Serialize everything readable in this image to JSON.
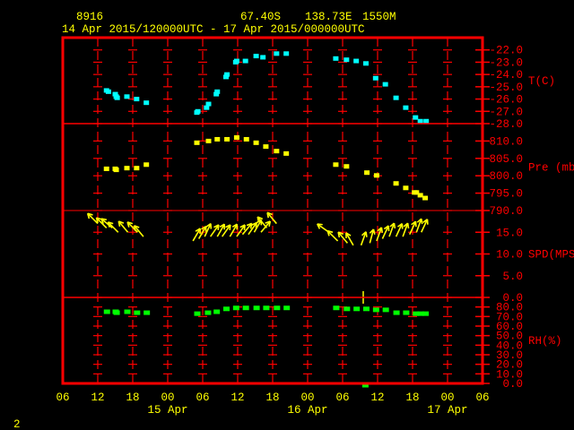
{
  "header": {
    "station": "8916",
    "latitude": "67.40S",
    "longitude": "138.73E",
    "elevation": "1550M",
    "period": "14 Apr 2015/120000UTC - 17 Apr 2015/000000UTC"
  },
  "footer_label": "2",
  "colors": {
    "frame": "#ff0000",
    "text": "#ffff00",
    "temperature": "#00ffff",
    "pressure": "#ffff00",
    "wind": "#ffff00",
    "humidity": "#00ff00"
  },
  "chart_data": {
    "type": "scatter",
    "grid": true,
    "x_axis": {
      "range": [
        "2015-04-14 06:00",
        "2015-04-17 06:00"
      ],
      "tick_labels": [
        "06",
        "12",
        "18",
        "00",
        "06",
        "12",
        "18",
        "00",
        "06",
        "12",
        "18",
        "00",
        "06"
      ],
      "date_labels": [
        {
          "label": "15 Apr",
          "at": "2015-04-15 00:00"
        },
        {
          "label": "16 Apr",
          "at": "2015-04-16 00:00"
        },
        {
          "label": "17 Apr",
          "at": "2015-04-17 00:00"
        }
      ]
    },
    "panels": [
      {
        "key": "temp",
        "label": "T(C)",
        "ylim": [
          -28,
          -21
        ],
        "kind": "points",
        "ticks": [
          -22,
          -23,
          -24,
          -25,
          -26,
          -27,
          -28
        ],
        "tick_labels": [
          "-22.0",
          "-23.0",
          "-24.0",
          "-25.0",
          "-26.0",
          "-27.0",
          "-28.0"
        ],
        "points": [
          [
            "2015-04-14 13:30",
            -25.3
          ],
          [
            "2015-04-14 13:50",
            -25.4
          ],
          [
            "2015-04-14 15:00",
            -25.6
          ],
          [
            "2015-04-14 15:10",
            -25.8
          ],
          [
            "2015-04-14 15:20",
            -25.9
          ],
          [
            "2015-04-14 17:00",
            -25.8
          ],
          [
            "2015-04-14 18:40",
            -26.0
          ],
          [
            "2015-04-14 20:20",
            -26.3
          ],
          [
            "2015-04-15 05:00",
            -27.1
          ],
          [
            "2015-04-15 05:10",
            -27.0
          ],
          [
            "2015-04-15 06:40",
            -26.7
          ],
          [
            "2015-04-15 07:00",
            -26.4
          ],
          [
            "2015-04-15 08:20",
            -25.6
          ],
          [
            "2015-04-15 08:30",
            -25.4
          ],
          [
            "2015-04-15 10:00",
            -24.2
          ],
          [
            "2015-04-15 10:10",
            -24.0
          ],
          [
            "2015-04-15 11:40",
            -23.0
          ],
          [
            "2015-04-15 11:50",
            -22.9
          ],
          [
            "2015-04-15 13:20",
            -22.9
          ],
          [
            "2015-04-15 15:10",
            -22.5
          ],
          [
            "2015-04-15 16:20",
            -22.6
          ],
          [
            "2015-04-15 18:40",
            -22.3
          ],
          [
            "2015-04-15 20:20",
            -22.3
          ],
          [
            "2015-04-16 04:50",
            -22.7
          ],
          [
            "2015-04-16 06:40",
            -22.8
          ],
          [
            "2015-04-16 08:20",
            -22.9
          ],
          [
            "2015-04-16 10:00",
            -23.1
          ],
          [
            "2015-04-16 11:40",
            -24.3
          ],
          [
            "2015-04-16 13:20",
            -24.8
          ],
          [
            "2015-04-16 15:10",
            -25.9
          ],
          [
            "2015-04-16 16:50",
            -26.7
          ],
          [
            "2015-04-16 18:30",
            -27.5
          ],
          [
            "2015-04-16 19:20",
            -27.8
          ],
          [
            "2015-04-16 20:20",
            -27.8
          ]
        ]
      },
      {
        "key": "pres",
        "label": "Pre (mb)",
        "ylim": [
          790,
          815
        ],
        "kind": "points",
        "ticks": [
          810,
          805,
          800,
          795,
          790
        ],
        "tick_labels": [
          "810.0",
          "805.0",
          "800.0",
          "795.0",
          "790.0"
        ],
        "points": [
          [
            "2015-04-14 13:30",
            802.0
          ],
          [
            "2015-04-14 15:00",
            802.0
          ],
          [
            "2015-04-14 15:10",
            801.7
          ],
          [
            "2015-04-14 17:00",
            802.2
          ],
          [
            "2015-04-14 18:40",
            802.2
          ],
          [
            "2015-04-14 20:20",
            803.2
          ],
          [
            "2015-04-15 05:00",
            809.5
          ],
          [
            "2015-04-15 07:00",
            810.0
          ],
          [
            "2015-04-15 08:30",
            810.5
          ],
          [
            "2015-04-15 10:10",
            810.5
          ],
          [
            "2015-04-15 11:50",
            811.0
          ],
          [
            "2015-04-15 13:30",
            810.5
          ],
          [
            "2015-04-15 15:10",
            809.5
          ],
          [
            "2015-04-15 16:50",
            808.4
          ],
          [
            "2015-04-15 18:40",
            807.1
          ],
          [
            "2015-04-15 20:20",
            806.4
          ],
          [
            "2015-04-16 04:50",
            803.2
          ],
          [
            "2015-04-16 06:40",
            802.7
          ],
          [
            "2015-04-16 10:10",
            800.9
          ],
          [
            "2015-04-16 11:50",
            800.1
          ],
          [
            "2015-04-16 15:10",
            797.8
          ],
          [
            "2015-04-16 16:50",
            796.5
          ],
          [
            "2015-04-16 18:20",
            795.2
          ],
          [
            "2015-04-16 18:40",
            795.2
          ],
          [
            "2015-04-16 19:20",
            794.4
          ],
          [
            "2015-04-16 20:10",
            793.6
          ]
        ]
      },
      {
        "key": "wind",
        "label": "SPD(MPS)",
        "ylim": [
          0,
          20
        ],
        "kind": "arrows",
        "ticks": [
          15,
          10,
          5,
          0
        ],
        "tick_labels": [
          "15.0",
          "10.0",
          "5.0",
          "0.0"
        ],
        "points": [
          [
            "2015-04-14 12:00",
            17,
            315
          ],
          [
            "2015-04-14 13:30",
            16,
            315
          ],
          [
            "2015-04-14 14:30",
            16,
            310
          ],
          [
            "2015-04-14 15:30",
            15,
            315
          ],
          [
            "2015-04-14 17:10",
            15,
            320
          ],
          [
            "2015-04-14 18:50",
            15,
            315
          ],
          [
            "2015-04-14 19:50",
            14,
            320
          ],
          [
            "2015-04-15 04:20",
            13,
            30
          ],
          [
            "2015-04-15 05:20",
            13.5,
            30
          ],
          [
            "2015-04-15 06:20",
            14,
            25
          ],
          [
            "2015-04-15 07:20",
            14,
            35
          ],
          [
            "2015-04-15 08:30",
            14,
            30
          ],
          [
            "2015-04-15 09:20",
            14,
            35
          ],
          [
            "2015-04-15 10:40",
            14,
            30
          ],
          [
            "2015-04-15 11:50",
            14,
            35
          ],
          [
            "2015-04-15 12:50",
            14.5,
            40
          ],
          [
            "2015-04-15 13:50",
            14.5,
            35
          ],
          [
            "2015-04-15 14:50",
            15,
            30
          ],
          [
            "2015-04-15 16:00",
            15,
            40
          ],
          [
            "2015-04-15 17:00",
            16,
            320
          ],
          [
            "2015-04-15 18:40",
            17,
            320
          ],
          [
            "2015-04-16 03:40",
            15,
            305
          ],
          [
            "2015-04-16 05:10",
            13,
            315
          ],
          [
            "2015-04-16 06:50",
            12.5,
            320
          ],
          [
            "2015-04-16 07:50",
            12,
            330
          ],
          [
            "2015-04-16 09:10",
            12,
            20
          ],
          [
            "2015-04-16 10:40",
            12.5,
            15
          ],
          [
            "2015-04-16 11:50",
            13,
            20
          ],
          [
            "2015-04-16 12:50",
            13.5,
            25
          ],
          [
            "2015-04-16 14:00",
            14,
            20
          ],
          [
            "2015-04-16 15:10",
            14,
            25
          ],
          [
            "2015-04-16 16:20",
            14,
            20
          ],
          [
            "2015-04-16 17:30",
            14.5,
            25
          ],
          [
            "2015-04-16 18:40",
            15,
            20
          ],
          [
            "2015-04-16 19:30",
            15,
            25
          ]
        ]
      },
      {
        "key": "rh",
        "label": "RH(%)",
        "ylim": [
          0,
          90
        ],
        "kind": "points",
        "ticks": [
          80,
          70,
          60,
          50,
          40,
          30,
          20,
          10,
          0
        ],
        "tick_labels": [
          "80.0",
          "70.0",
          "60.0",
          "50.0",
          "40.0",
          "30.0",
          "20.0",
          "10.0",
          "0.0"
        ],
        "points": [
          [
            "2015-04-14 13:30",
            75
          ],
          [
            "2015-04-14 15:00",
            75
          ],
          [
            "2015-04-14 15:10",
            74
          ],
          [
            "2015-04-14 17:00",
            75
          ],
          [
            "2015-04-14 18:40",
            74
          ],
          [
            "2015-04-14 20:20",
            74
          ],
          [
            "2015-04-15 05:00",
            73
          ],
          [
            "2015-04-15 06:50",
            74
          ],
          [
            "2015-04-15 08:20",
            75
          ],
          [
            "2015-04-15 10:00",
            78
          ],
          [
            "2015-04-15 11:40",
            79
          ],
          [
            "2015-04-15 13:20",
            79
          ],
          [
            "2015-04-15 15:10",
            79
          ],
          [
            "2015-04-15 16:50",
            79
          ],
          [
            "2015-04-15 18:40",
            79
          ],
          [
            "2015-04-15 20:20",
            79
          ],
          [
            "2015-04-16 04:50",
            79
          ],
          [
            "2015-04-16 06:40",
            78
          ],
          [
            "2015-04-16 08:20",
            78
          ],
          [
            "2015-04-16 10:00",
            78
          ],
          [
            "2015-04-16 11:40",
            77
          ],
          [
            "2015-04-16 13:20",
            77
          ],
          [
            "2015-04-16 15:10",
            74
          ],
          [
            "2015-04-16 16:50",
            74
          ],
          [
            "2015-04-16 18:30",
            73
          ],
          [
            "2015-04-16 19:20",
            73
          ],
          [
            "2015-04-16 20:10",
            73
          ],
          [
            "2015-04-16 09:50",
            0
          ]
        ]
      }
    ]
  }
}
